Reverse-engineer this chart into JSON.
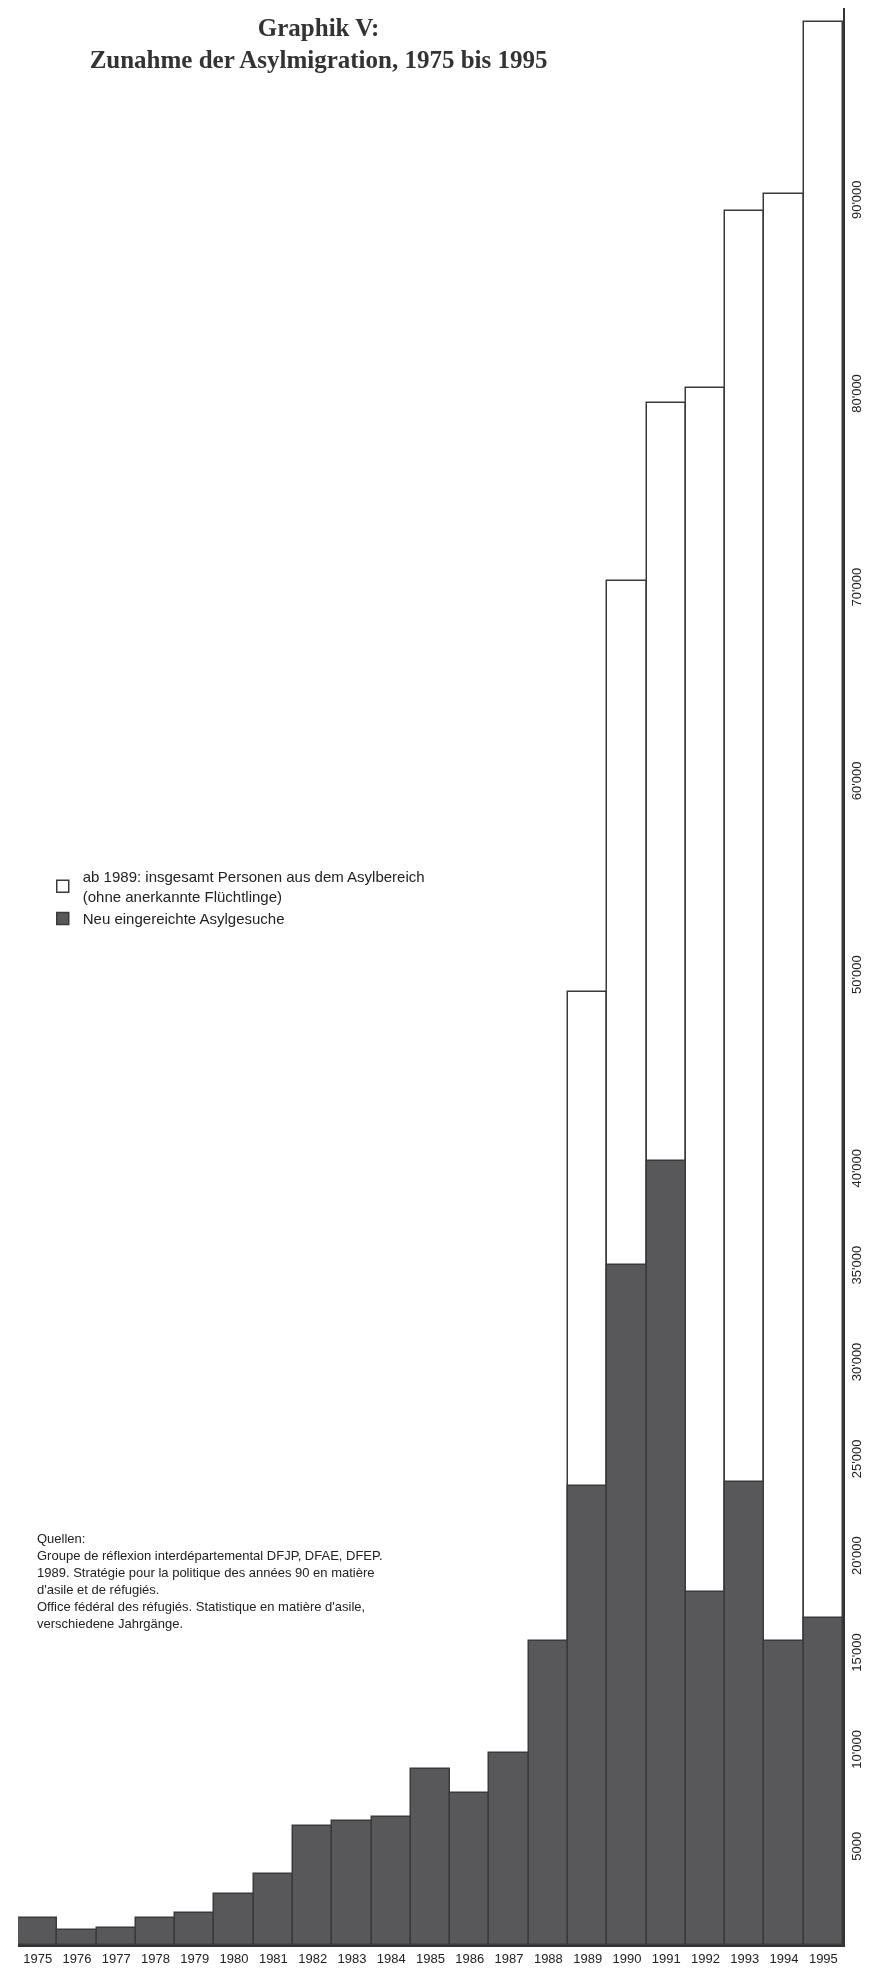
{
  "chart_data": {
    "type": "bar",
    "title": "Graphik V:\nZunahme der Asylmigration, 1975 bis 1995",
    "categories": [
      "1975",
      "1976",
      "1977",
      "1978",
      "1979",
      "1980",
      "1981",
      "1982",
      "1983",
      "1984",
      "1985",
      "1986",
      "1987",
      "1988",
      "1989",
      "1990",
      "1991",
      "1992",
      "1993",
      "1994",
      "1995"
    ],
    "series": [
      {
        "name": "ab 1989: insgesamt Personen aus dem Asylbereich\n(ohne anerkannte Flüchtlinge)",
        "color": "#ffffff",
        "values": [
          null,
          null,
          null,
          null,
          null,
          null,
          null,
          null,
          null,
          null,
          null,
          null,
          null,
          null,
          49200,
          70400,
          79600,
          80400,
          89500,
          90400,
          99300
        ]
      },
      {
        "name": "Neu eingereichte Asylgesuche",
        "color": "#58585a",
        "values": [
          1400,
          800,
          900,
          1400,
          1650,
          2650,
          3650,
          6150,
          6400,
          6600,
          9100,
          7850,
          9900,
          15700,
          23700,
          35100,
          40500,
          18250,
          23900,
          15700,
          16900
        ]
      }
    ],
    "ylim": [
      0,
      100000
    ],
    "yticks": [
      5000,
      {
        "value": 10000,
        "label": "10'000"
      },
      {
        "value": 15000,
        "label": "15'000"
      },
      {
        "value": 20000,
        "label": "20'000"
      },
      {
        "value": 25000,
        "label": "25'000"
      },
      {
        "value": 30000,
        "label": "30'000"
      },
      {
        "value": 35000,
        "label": "35'000"
      },
      {
        "value": 40000,
        "label": "40'000"
      },
      {
        "value": 50000,
        "label": "50'000"
      },
      {
        "value": 60000,
        "label": "60'000"
      },
      {
        "value": 70000,
        "label": "70'000"
      },
      {
        "value": 80000,
        "label": "80'000"
      },
      {
        "value": 90000,
        "label": "90'000"
      }
    ],
    "grid": false,
    "legend": "left",
    "annotations": [
      "Quellen:\nGroupe de réflexion interdépartemental DFJP, DFAE, DFEP.\n1989. Stratégie pour la politique des années 90 en matière\nd'asile et de réfugiés.\nOffice fédéral des réfugiés. Statistique en matière d'asile,\nverschiedene Jahrgänge."
    ]
  }
}
